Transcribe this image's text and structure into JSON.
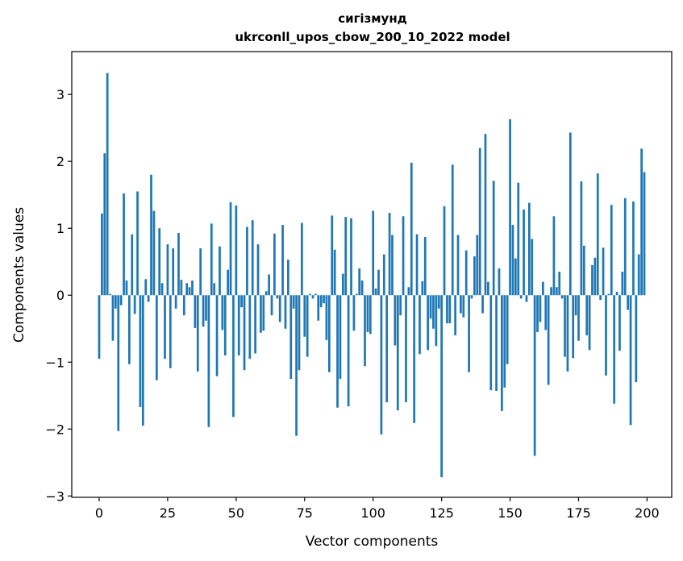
{
  "chart_data": {
    "type": "bar",
    "title_line1": "сигізмунд",
    "title_line2": "ukrconll_upos_cbow_200_10_2022 model",
    "xlabel": "Vector components",
    "ylabel": "Components values",
    "xlim": [
      -10,
      209
    ],
    "ylim": [
      -3.02,
      3.64
    ],
    "xticks": [
      0,
      25,
      50,
      75,
      100,
      125,
      150,
      175,
      200
    ],
    "yticks": [
      -3,
      -2,
      -1,
      0,
      1,
      2,
      3
    ],
    "ytick_labels": [
      "−3",
      "−2",
      "−1",
      "0",
      "1",
      "2",
      "3"
    ],
    "bar_color": "#1f77b4",
    "grid": false,
    "values": [
      -0.95,
      1.22,
      2.12,
      3.32,
      0.02,
      -0.68,
      -0.2,
      -2.03,
      -0.15,
      1.52,
      0.22,
      -1.03,
      0.91,
      -0.28,
      1.55,
      -1.67,
      -1.95,
      0.24,
      -0.1,
      1.8,
      1.26,
      -1.27,
      1.0,
      0.18,
      -0.95,
      0.76,
      -1.09,
      0.7,
      -0.2,
      0.93,
      0.23,
      -0.3,
      0.18,
      0.12,
      0.22,
      -0.49,
      -1.14,
      0.7,
      -0.47,
      -0.38,
      -1.97,
      1.07,
      0.18,
      -1.21,
      0.73,
      -0.52,
      -0.9,
      0.38,
      1.39,
      -1.82,
      1.34,
      -0.9,
      -0.18,
      -1.12,
      1.02,
      -0.95,
      1.12,
      -0.87,
      0.76,
      -0.56,
      -0.53,
      0.06,
      0.31,
      -0.3,
      0.92,
      -0.05,
      -0.4,
      1.05,
      -0.5,
      0.53,
      -1.25,
      -0.2,
      -2.1,
      -1.12,
      1.08,
      -0.62,
      -0.92,
      0.02,
      -0.05,
      0.02,
      -0.38,
      -0.18,
      -0.12,
      -0.67,
      -1.15,
      1.19,
      0.68,
      -1.68,
      -1.25,
      0.32,
      1.17,
      -1.66,
      1.15,
      -0.53,
      0.02,
      0.4,
      0.22,
      -1.06,
      -0.55,
      -0.58,
      1.26,
      0.1,
      0.38,
      -2.08,
      0.61,
      -1.6,
      1.23,
      0.9,
      -0.75,
      -1.72,
      -0.3,
      1.18,
      -1.6,
      0.12,
      1.98,
      -1.91,
      0.91,
      -0.88,
      0.21,
      0.87,
      -0.82,
      -0.35,
      -0.5,
      -0.76,
      -0.2,
      -2.72,
      1.33,
      -0.42,
      -0.42,
      1.95,
      -0.6,
      0.9,
      -0.27,
      -0.33,
      0.67,
      -1.15,
      -0.05,
      0.58,
      0.9,
      2.2,
      -0.27,
      2.41,
      0.2,
      -1.42,
      1.71,
      -1.43,
      0.4,
      -1.73,
      -1.38,
      -1.03,
      2.63,
      1.05,
      0.55,
      1.68,
      -0.05,
      1.28,
      -0.1,
      1.38,
      0.84,
      -2.4,
      -0.55,
      -0.4,
      0.2,
      -0.52,
      -1.34,
      0.12,
      1.18,
      0.12,
      0.35,
      -0.05,
      -0.92,
      -1.14,
      2.43,
      -0.94,
      -0.3,
      -0.68,
      1.7,
      0.74,
      -0.6,
      -0.82,
      0.45,
      0.56,
      1.82,
      -0.07,
      0.71,
      -1.2,
      0.02,
      1.35,
      -1.62,
      0.05,
      -0.83,
      0.35,
      1.45,
      -0.22,
      -1.94,
      1.4,
      -1.3,
      0.61,
      2.19,
      1.84
    ]
  }
}
